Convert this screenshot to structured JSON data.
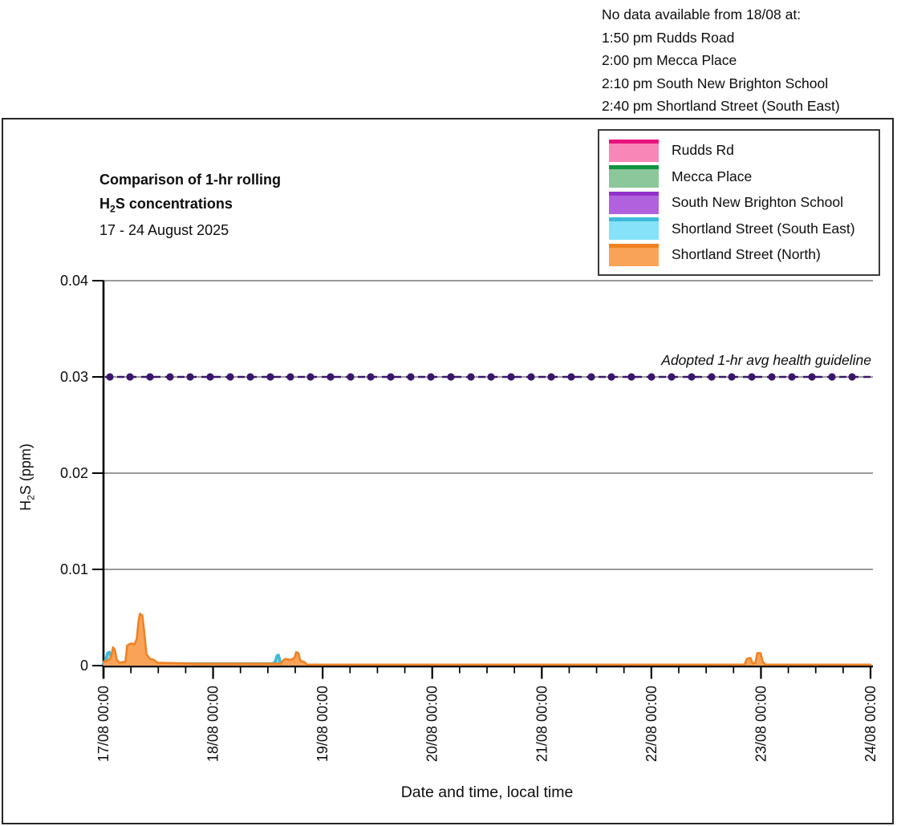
{
  "note": {
    "lines": [
      "No data available from 18/08 at:",
      "1:50 pm Rudds Road",
      "2:00 pm Mecca Place",
      "2:10 pm South New Brighton School",
      "2:40 pm Shortland Street (South East)"
    ]
  },
  "labels": {
    "title_line1": "Comparison of 1-hr rolling",
    "title2_prefix": "H",
    "title2_sub": "2",
    "title2_suffix": "S concentrations",
    "subtitle": "17 - 24 August 2025",
    "y_prefix": "H",
    "y_sub": "2",
    "y_suffix": "S (ppm)"
  },
  "chart_data": {
    "type": "area",
    "title": "Comparison of 1-hr rolling H2S concentrations",
    "subtitle": "17 - 24 August 2025",
    "xlabel": "Date and time, local time",
    "ylabel": "H2S (ppm)",
    "x_unit": "hours since 17/08 00:00",
    "xlim": [
      0,
      168
    ],
    "ylim": [
      0,
      0.04
    ],
    "yticks": [
      0,
      0.01,
      0.02,
      0.03,
      0.04
    ],
    "xticks": [
      "17/08 00:00",
      "18/08 00:00",
      "19/08 00:00",
      "20/08 00:00",
      "21/08 00:00",
      "22/08 00:00",
      "23/08 00:00",
      "24/08 00:00"
    ],
    "minor_tick_hours": 6,
    "grid": "horizontal-gray",
    "legend_position": "top-right",
    "guideline": {
      "label": "Adopted 1-hr avg health guideline",
      "value": 0.03,
      "color": "#39166B"
    },
    "series": [
      {
        "name": "Mecca Place",
        "line": "#109540",
        "fill": "#8CC79B",
        "points": [
          [
            0,
            0.0001
          ],
          [
            38,
            0.0001
          ]
        ]
      },
      {
        "name": "South New Brighton School",
        "line": "#9231C9",
        "fill": "#B261DE",
        "points": [
          [
            0,
            0.0001
          ],
          [
            38.2,
            0.0001
          ]
        ]
      },
      {
        "name": "Rudds Rd",
        "line": "#E8127C",
        "fill": "#F887B7",
        "points": [
          [
            0,
            0.0001
          ],
          [
            0.3,
            0.0004
          ],
          [
            0.7,
            0.0005
          ],
          [
            1.2,
            0.0003
          ],
          [
            1.7,
            0.0001
          ],
          [
            37.8,
            0.0001
          ]
        ]
      },
      {
        "name": "Shortland Street (South East)",
        "line": "#3FB9DC",
        "fill": "#86E2F8",
        "points": [
          [
            0,
            0.0002
          ],
          [
            0.5,
            0.0006
          ],
          [
            0.9,
            0.0013
          ],
          [
            1.3,
            0.0014
          ],
          [
            1.8,
            0.0008
          ],
          [
            2.3,
            0.0003
          ],
          [
            3,
            0.0002
          ],
          [
            20,
            0.0002
          ],
          [
            37.0,
            0.0002
          ],
          [
            37.6,
            0.0004
          ],
          [
            38.0,
            0.001
          ],
          [
            38.3,
            0.0011
          ],
          [
            38.6,
            0.0006
          ],
          [
            38.7,
            0.0002
          ]
        ]
      },
      {
        "name": "Shortland Street (North)",
        "line": "#F08222",
        "fill": "#F9A359",
        "points": [
          [
            0,
            0.0004
          ],
          [
            0.8,
            0.0005
          ],
          [
            1.6,
            0.0008
          ],
          [
            2.1,
            0.0019
          ],
          [
            2.5,
            0.0016
          ],
          [
            2.9,
            0.0006
          ],
          [
            3.5,
            0.0003
          ],
          [
            4.8,
            0.0004
          ],
          [
            5.2,
            0.0021
          ],
          [
            6.0,
            0.0023
          ],
          [
            6.8,
            0.0022
          ],
          [
            7.3,
            0.0028
          ],
          [
            7.7,
            0.0047
          ],
          [
            8.0,
            0.0054
          ],
          [
            8.5,
            0.0052
          ],
          [
            9.0,
            0.0032
          ],
          [
            9.4,
            0.0012
          ],
          [
            10.2,
            0.0007
          ],
          [
            11.0,
            0.0006
          ],
          [
            11.8,
            0.0003
          ],
          [
            20,
            0.0002
          ],
          [
            30,
            0.0002
          ],
          [
            38.8,
            0.0002
          ],
          [
            39.3,
            0.0005
          ],
          [
            39.8,
            0.0007
          ],
          [
            40.8,
            0.0006
          ],
          [
            41.5,
            0.0007
          ],
          [
            41.9,
            0.0009
          ],
          [
            42.2,
            0.0014
          ],
          [
            42.7,
            0.0013
          ],
          [
            43.1,
            0.0005
          ],
          [
            43.9,
            0.0004
          ],
          [
            44.6,
            0.0001
          ],
          [
            90,
            0.0001
          ],
          [
            140.4,
            0.0001
          ],
          [
            140.9,
            0.0007
          ],
          [
            141.7,
            0.0008
          ],
          [
            142.2,
            0.0002
          ],
          [
            142.8,
            0.0003
          ],
          [
            143.2,
            0.0013
          ],
          [
            143.9,
            0.0013
          ],
          [
            144.4,
            0.0004
          ],
          [
            145.0,
            0.0001
          ],
          [
            168,
            0.0001
          ]
        ]
      }
    ],
    "legend_order": [
      "Rudds Rd",
      "Mecca Place",
      "South New Brighton School",
      "Shortland Street (South East)",
      "Shortland Street (North)"
    ]
  }
}
